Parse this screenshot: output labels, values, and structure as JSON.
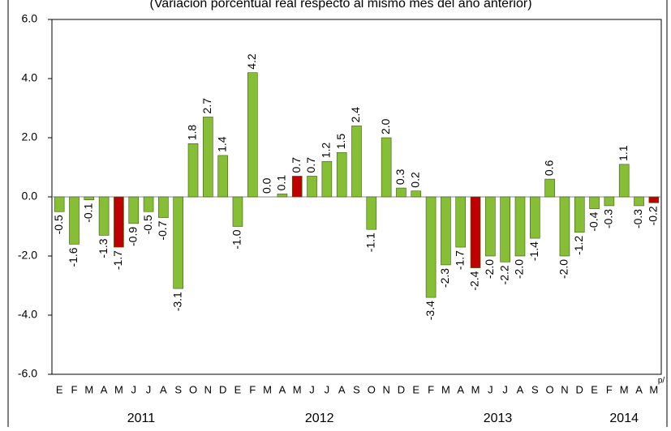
{
  "chart_data": {
    "type": "bar",
    "subtitle": "(Variación porcentual real respecto al mismo mes del año anterior)",
    "categories": [
      "E",
      "F",
      "M",
      "A",
      "M",
      "J",
      "J",
      "A",
      "S",
      "O",
      "N",
      "D",
      "E",
      "F",
      "M",
      "A",
      "M",
      "J",
      "J",
      "A",
      "S",
      "O",
      "N",
      "D",
      "E",
      "F",
      "M",
      "A",
      "M",
      "J",
      "J",
      "A",
      "S",
      "O",
      "N",
      "D",
      "E",
      "F",
      "M",
      "A",
      "M"
    ],
    "values": [
      -0.5,
      -1.6,
      -0.1,
      -1.3,
      -1.7,
      -0.9,
      -0.5,
      -0.7,
      -3.1,
      1.8,
      2.7,
      1.4,
      -1.0,
      4.2,
      0.0,
      0.1,
      0.7,
      0.7,
      1.2,
      1.5,
      2.4,
      -1.1,
      2.0,
      0.3,
      0.2,
      -3.4,
      -2.3,
      -1.7,
      -2.4,
      -2.0,
      -2.2,
      -2.0,
      -1.4,
      0.6,
      -2.0,
      -1.2,
      -0.4,
      -0.3,
      1.1,
      -0.3,
      -0.2
    ],
    "value_labels": [
      "-0.5",
      "-1.6",
      "-0.1",
      "-1.3",
      "-1.7",
      "-0.9",
      "-0.5",
      "-0.7",
      "-3.1",
      "1.8",
      "2.7",
      "1.4",
      "-1.0",
      "4.2",
      "0.0",
      "0.1",
      "0.7",
      "0.7",
      "1.2",
      "1.5",
      "2.4",
      "-1.1",
      "2.0",
      "0.3",
      "0.2",
      "-3.4",
      "-2.3",
      "-1.7",
      "-2.4",
      "-2.0",
      "-2.2",
      "-2.0",
      "-1.4",
      "0.6",
      "-2.0",
      "-1.2",
      "-0.4",
      "-0.3",
      "1.1",
      "-0.3",
      "-0.2"
    ],
    "colors": [
      "#86bf35",
      "#86bf35",
      "#86bf35",
      "#86bf35",
      "#c00000",
      "#86bf35",
      "#86bf35",
      "#86bf35",
      "#86bf35",
      "#86bf35",
      "#86bf35",
      "#86bf35",
      "#86bf35",
      "#86bf35",
      "#86bf35",
      "#86bf35",
      "#c00000",
      "#86bf35",
      "#86bf35",
      "#86bf35",
      "#86bf35",
      "#86bf35",
      "#86bf35",
      "#86bf35",
      "#86bf35",
      "#86bf35",
      "#86bf35",
      "#86bf35",
      "#c00000",
      "#86bf35",
      "#86bf35",
      "#86bf35",
      "#86bf35",
      "#86bf35",
      "#86bf35",
      "#86bf35",
      "#86bf35",
      "#86bf35",
      "#86bf35",
      "#86bf35",
      "#c00000"
    ],
    "years": [
      "2011",
      "2012",
      "2013",
      "2014"
    ],
    "month_note": "p/",
    "ylim": [
      -6,
      6
    ],
    "yticks": [
      {
        "value": -6,
        "label": "-6.0"
      },
      {
        "value": -4,
        "label": "-4.0"
      },
      {
        "value": -2,
        "label": "-2.0"
      },
      {
        "value": 0,
        "label": "0.0"
      },
      {
        "value": 2,
        "label": "2.0"
      },
      {
        "value": 4,
        "label": "4.0"
      },
      {
        "value": 6,
        "label": "6.0"
      }
    ],
    "grid": false
  }
}
